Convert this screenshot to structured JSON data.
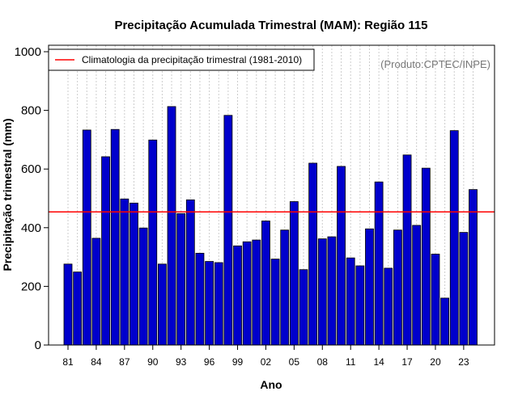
{
  "chart_data": {
    "type": "bar",
    "title": "Precipitação Acumulada Trimestral (MAM): Região 115",
    "xlabel": "Ano",
    "ylabel": "Precipitação trimestral (mm)",
    "ylim": [
      0,
      1000
    ],
    "y_ticks": [
      0,
      200,
      400,
      600,
      800,
      1000
    ],
    "x_tick_labels": [
      "81",
      "84",
      "87",
      "90",
      "93",
      "96",
      "99",
      "02",
      "05",
      "08",
      "11",
      "14",
      "17",
      "20",
      "23"
    ],
    "categories": [
      "1981",
      "1982",
      "1983",
      "1984",
      "1985",
      "1986",
      "1987",
      "1988",
      "1989",
      "1990",
      "1991",
      "1992",
      "1993",
      "1994",
      "1995",
      "1996",
      "1997",
      "1998",
      "1999",
      "2000",
      "2001",
      "2002",
      "2003",
      "2004",
      "2005",
      "2006",
      "2007",
      "2008",
      "2009",
      "2010",
      "2011",
      "2012",
      "2013",
      "2014",
      "2015",
      "2016",
      "2017",
      "2018",
      "2019",
      "2020",
      "2021",
      "2022",
      "2023",
      "2024"
    ],
    "values": [
      276,
      249,
      733,
      364,
      642,
      735,
      498,
      484,
      399,
      699,
      276,
      813,
      448,
      495,
      313,
      285,
      281,
      783,
      338,
      352,
      358,
      423,
      293,
      392,
      489,
      257,
      620,
      362,
      369,
      609,
      297,
      270,
      396,
      556,
      262,
      392,
      648,
      408,
      603,
      310,
      160,
      731,
      384,
      530
    ],
    "reference_line": {
      "value": 454,
      "color": "#ff0000"
    },
    "legend": {
      "position": "top-left",
      "entries": [
        "Climatologia da precipitação trimestral (1981-2010)"
      ]
    },
    "credit": "(Produto:CPTEC/INPE)",
    "colors": {
      "bar_fill": "#0000cc",
      "bar_edge": "#000000",
      "grid": "#cccccc"
    },
    "grid": true
  }
}
